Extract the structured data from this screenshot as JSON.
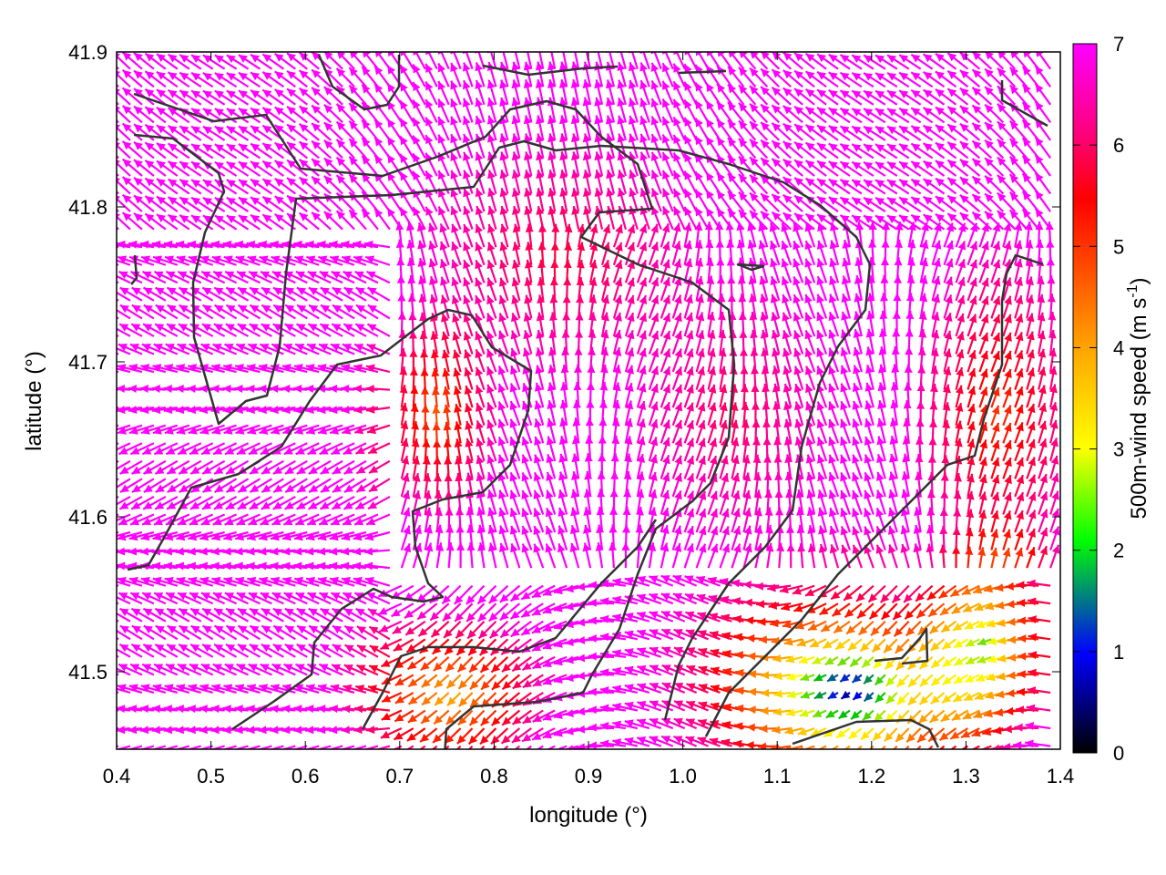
{
  "chart_data": {
    "type": "vector-field",
    "title": "",
    "xlabel": "longitude (°)",
    "ylabel": "latitude (°)",
    "xlim": [
      0.4,
      1.4
    ],
    "ylim": [
      41.45,
      41.9
    ],
    "xticks": [
      "0.4",
      "0.5",
      "0.6",
      "0.7",
      "0.8",
      "0.9",
      "1.0",
      "1.1",
      "1.2",
      "1.3",
      "1.4"
    ],
    "yticks": [
      "41.5",
      "41.6",
      "41.7",
      "41.8",
      "41.9"
    ],
    "grid": false,
    "colorbar": {
      "label": "500m-wind speed (m s",
      "label_sup": "-1",
      "label_end": ")",
      "range": [
        0,
        7
      ],
      "ticks": [
        "0",
        "1",
        "2",
        "3",
        "4",
        "5",
        "6",
        "7"
      ],
      "palette": [
        "#000000",
        "#0000ff",
        "#00ff00",
        "#ffff00",
        "#ffa500",
        "#ff0000",
        "#ff00ff"
      ]
    },
    "wind_regions": [
      {
        "area": "west and north",
        "speed_ms": 7
      },
      {
        "area": "central basin",
        "speed_ms": 6
      },
      {
        "area": "south-east valley",
        "speed_ms": 3
      }
    ]
  }
}
